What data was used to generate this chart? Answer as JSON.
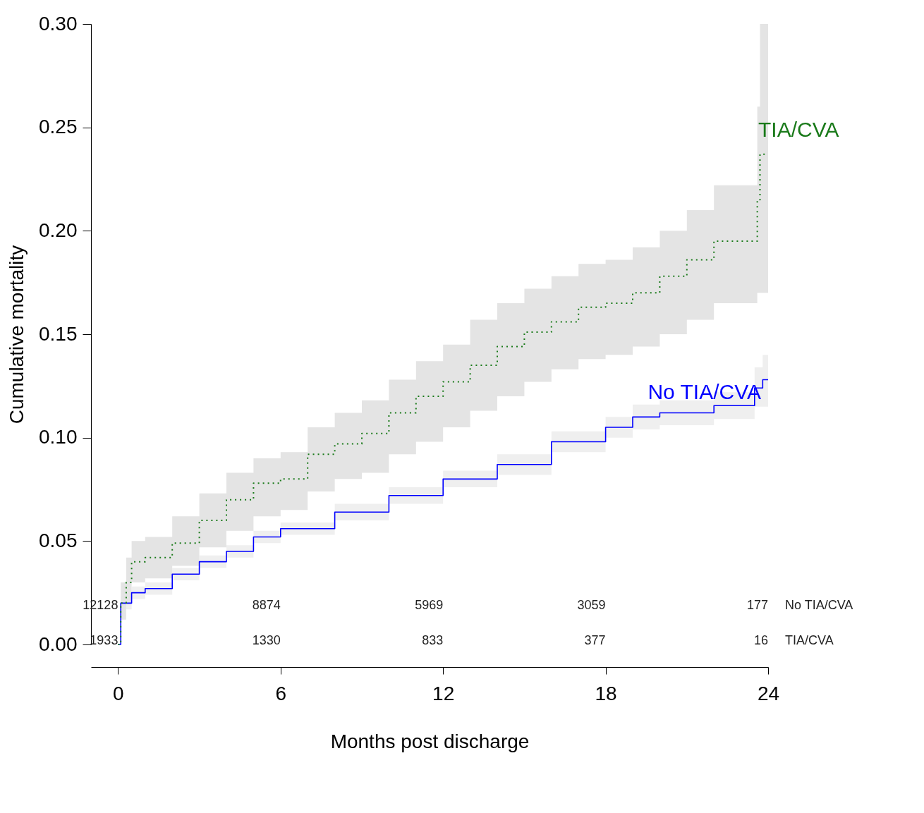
{
  "chart_data": {
    "type": "step",
    "xlabel": "Months post discharge",
    "ylabel": "Cumulative mortality",
    "xlim": [
      -1,
      24
    ],
    "ylim": [
      0,
      0.3
    ],
    "xticks": [
      0,
      6,
      12,
      18,
      24
    ],
    "yticks": [
      {
        "value": 0,
        "label": "0.00"
      },
      {
        "value": 0.05,
        "label": "0.05"
      },
      {
        "value": 0.1,
        "label": "0.10"
      },
      {
        "value": 0.15,
        "label": "0.15"
      },
      {
        "value": 0.2,
        "label": "0.20"
      },
      {
        "value": 0.25,
        "label": "0.25"
      },
      {
        "value": 0.3,
        "label": "0.30"
      }
    ],
    "grid": false,
    "legend": false,
    "marker": "none",
    "series": [
      {
        "name": "No TIA/CVA",
        "color": "#0000ff",
        "line_style": "solid",
        "x": [
          0,
          0.1,
          0.5,
          1,
          2,
          3,
          4,
          5,
          6,
          8,
          10,
          12,
          14,
          16,
          18,
          19,
          20,
          22,
          23.5,
          23.8,
          24
        ],
        "values": [
          0,
          0.02,
          0.025,
          0.027,
          0.034,
          0.04,
          0.045,
          0.052,
          0.056,
          0.064,
          0.072,
          0.08,
          0.087,
          0.098,
          0.105,
          0.11,
          0.112,
          0.1155,
          0.124,
          0.128,
          0.128
        ],
        "lower": [
          0,
          0.017,
          0.022,
          0.024,
          0.031,
          0.037,
          0.042,
          0.049,
          0.053,
          0.06,
          0.068,
          0.076,
          0.082,
          0.093,
          0.1,
          0.104,
          0.106,
          0.109,
          0.115,
          0.115,
          0.115
        ],
        "upper": [
          0,
          0.023,
          0.028,
          0.03,
          0.037,
          0.043,
          0.048,
          0.055,
          0.059,
          0.068,
          0.076,
          0.084,
          0.092,
          0.103,
          0.11,
          0.116,
          0.118,
          0.122,
          0.134,
          0.14,
          0.14
        ]
      },
      {
        "name": "TIA/CVA",
        "color": "#1a7a1a",
        "line_style": "dotted",
        "x": [
          0,
          0.1,
          0.3,
          0.5,
          1,
          2,
          3,
          4,
          5,
          6,
          7,
          8,
          9,
          10,
          11,
          12,
          13,
          14,
          15,
          16,
          17,
          18,
          19,
          20,
          21,
          22,
          23.5,
          23.6,
          23.7,
          24
        ],
        "values": [
          0,
          0.02,
          0.03,
          0.04,
          0.042,
          0.049,
          0.06,
          0.07,
          0.078,
          0.08,
          0.092,
          0.097,
          0.102,
          0.112,
          0.12,
          0.127,
          0.135,
          0.144,
          0.151,
          0.156,
          0.163,
          0.165,
          0.17,
          0.178,
          0.186,
          0.195,
          0.195,
          0.215,
          0.237,
          0.237
        ],
        "lower": [
          0,
          0.012,
          0.02,
          0.03,
          0.032,
          0.038,
          0.047,
          0.055,
          0.062,
          0.065,
          0.074,
          0.08,
          0.083,
          0.092,
          0.098,
          0.105,
          0.113,
          0.12,
          0.127,
          0.133,
          0.138,
          0.14,
          0.144,
          0.15,
          0.157,
          0.165,
          0.165,
          0.17,
          0.17,
          0.17
        ],
        "upper": [
          0,
          0.03,
          0.042,
          0.05,
          0.052,
          0.062,
          0.073,
          0.083,
          0.09,
          0.093,
          0.105,
          0.112,
          0.118,
          0.128,
          0.137,
          0.145,
          0.157,
          0.165,
          0.172,
          0.178,
          0.184,
          0.186,
          0.192,
          0.2,
          0.21,
          0.222,
          0.222,
          0.26,
          0.3,
          0.3
        ]
      }
    ],
    "annotations": [
      "12128",
      "8874",
      "5969",
      "3059",
      "177",
      "No TIA/CVA",
      "1933",
      "1330",
      "833",
      "377",
      "16",
      "TIA/CVA"
    ]
  }
}
